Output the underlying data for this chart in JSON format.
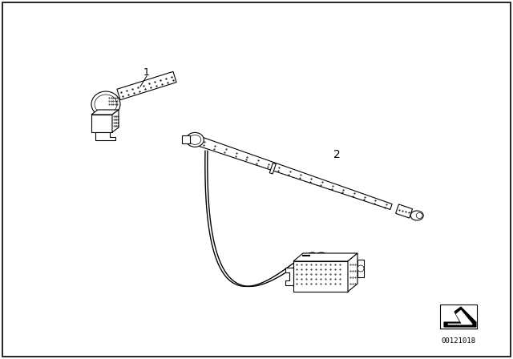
{
  "bg_color": "#ffffff",
  "border_color": "#000000",
  "part_number": "00121018",
  "label1": "1",
  "label2": "2",
  "fig_width": 6.4,
  "fig_height": 4.48,
  "dpi": 100
}
